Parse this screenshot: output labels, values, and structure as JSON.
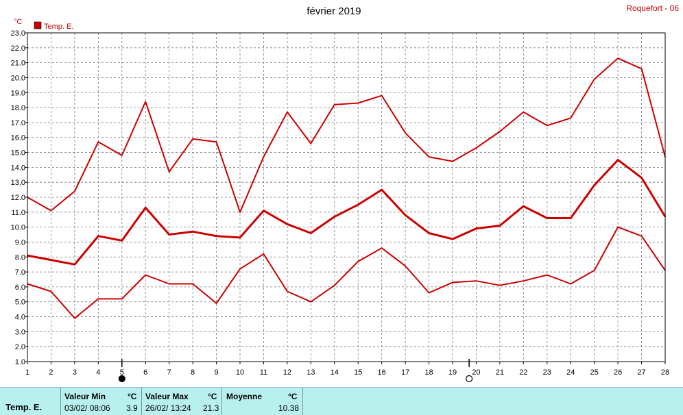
{
  "chart_data": {
    "type": "line",
    "title": "février 2019",
    "station": "Roquefort - 06",
    "ylabel": "°C",
    "legend": [
      "Temp. E."
    ],
    "legend_position": "top-left",
    "grid": true,
    "ylim": [
      1.0,
      23.0
    ],
    "yticks": [
      "1.0",
      "2.0",
      "3.0",
      "4.0",
      "5.0",
      "6.0",
      "7.0",
      "8.0",
      "9.0",
      "10.0",
      "11.0",
      "12.0",
      "13.0",
      "14.0",
      "15.0",
      "16.0",
      "17.0",
      "18.0",
      "19.0",
      "20.0",
      "21.0",
      "22.0",
      "23.0"
    ],
    "x": [
      1,
      2,
      3,
      4,
      5,
      6,
      7,
      8,
      9,
      10,
      11,
      12,
      13,
      14,
      15,
      16,
      17,
      18,
      19,
      20,
      21,
      22,
      23,
      24,
      25,
      26,
      27,
      28
    ],
    "moon_phases": [
      {
        "day": 5,
        "phase": "new"
      },
      {
        "day": 19.7,
        "phase": "full"
      }
    ],
    "series": [
      {
        "values": [
          12.0,
          11.1,
          12.4,
          15.7,
          14.8,
          18.4,
          13.7,
          15.9,
          15.7,
          11.0,
          14.7,
          17.7,
          15.6,
          18.2,
          18.3,
          18.8,
          16.3,
          14.7,
          14.4,
          15.3,
          16.4,
          17.7,
          16.8,
          17.3,
          19.9,
          21.3,
          20.6,
          14.7
        ],
        "style": "thin",
        "color": "#cc0000"
      },
      {
        "values": [
          8.1,
          7.8,
          7.5,
          9.4,
          9.1,
          11.3,
          9.5,
          9.7,
          9.4,
          9.3,
          11.1,
          10.2,
          9.6,
          10.7,
          11.5,
          12.5,
          10.8,
          9.6,
          9.2,
          9.9,
          10.1,
          11.4,
          10.6,
          10.6,
          12.8,
          14.5,
          13.3,
          10.7
        ],
        "style": "thick",
        "color": "#cc0000"
      },
      {
        "values": [
          6.2,
          5.7,
          3.9,
          5.2,
          5.2,
          6.8,
          6.2,
          6.2,
          4.9,
          7.2,
          8.2,
          5.7,
          5.0,
          6.1,
          7.7,
          8.6,
          7.4,
          5.6,
          6.3,
          6.4,
          6.1,
          6.4,
          6.8,
          6.2,
          7.1,
          10.0,
          9.4,
          7.1
        ],
        "style": "thin",
        "color": "#cc0000"
      }
    ]
  },
  "footer": {
    "series_label": "Temp. E.",
    "min": {
      "title": "Valeur Min",
      "unit": "°C",
      "date": "03/02/  08:06",
      "value": "3.9"
    },
    "max": {
      "title": "Valeur Max",
      "unit": "°C",
      "date": "26/02/  13:24",
      "value": "21.3"
    },
    "avg": {
      "title": "Moyenne",
      "unit": "°C",
      "value": "10.38"
    }
  }
}
